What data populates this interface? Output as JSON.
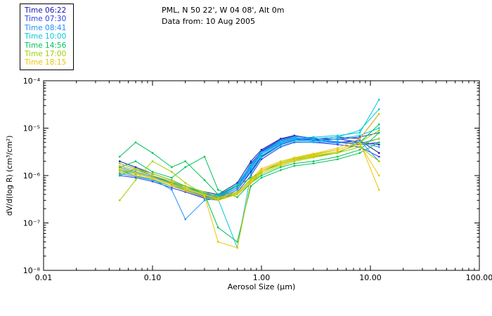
{
  "titles": {
    "line1": "PML, N 50 22', W 04 08', Alt 0m",
    "line2": "Data from: 10 Aug 2005"
  },
  "legend": {
    "position": "top-left",
    "entries": [
      {
        "label": "Time 06:22",
        "color": "#1515b0"
      },
      {
        "label": "Time 07:30",
        "color": "#2a3fe8"
      },
      {
        "label": "Time 08:41",
        "color": "#1e8fff"
      },
      {
        "label": "Time 10:00",
        "color": "#00c8dc"
      },
      {
        "label": "Time 14:56",
        "color": "#00c05a"
      },
      {
        "label": "Time 17:00",
        "color": "#9ed000"
      },
      {
        "label": "Time 18:15",
        "color": "#eec400"
      }
    ]
  },
  "chart_data": {
    "type": "line",
    "title": "PML, N 50 22', W 04 08', Alt 0m",
    "subtitle": "Data from: 10 Aug 2005",
    "xlabel": "Aerosol Size (μm)",
    "ylabel": "dV/d(log R) (cm³/cm²)",
    "xscale": "log",
    "yscale": "log",
    "xlim": [
      0.01,
      100
    ],
    "ylim": [
      1e-08,
      0.0001
    ],
    "grid": false,
    "legend_position": "top-left-outside",
    "x_ticks": [
      {
        "value": 0.01,
        "label": "0.01"
      },
      {
        "value": 0.1,
        "label": "0.10"
      },
      {
        "value": 1,
        "label": "1.00"
      },
      {
        "value": 10,
        "label": "10.00"
      },
      {
        "value": 100,
        "label": "100.00"
      }
    ],
    "y_ticks": [
      {
        "value": 1e-08,
        "label": "10⁻⁸"
      },
      {
        "value": 1e-07,
        "label": "10⁻⁷"
      },
      {
        "value": 1e-06,
        "label": "10⁻⁶"
      },
      {
        "value": 1e-05,
        "label": "10⁻⁵"
      },
      {
        "value": 0.0001,
        "label": "10⁻⁴"
      }
    ],
    "x": [
      0.05,
      0.07,
      0.1,
      0.15,
      0.2,
      0.3,
      0.4,
      0.6,
      0.8,
      1.0,
      1.5,
      2.0,
      3.0,
      5.0,
      8.0,
      12.0
    ],
    "series": [
      {
        "name": "Time 06:22 a",
        "color": "#1515b0",
        "values": [
          1.6e-06,
          1.3e-06,
          1e-06,
          7e-07,
          5.5e-07,
          4e-07,
          3.8e-07,
          6e-07,
          1.8e-06,
          3.2e-06,
          5.5e-06,
          6.5e-06,
          5.5e-06,
          6e-06,
          5e-06,
          4.5e-06
        ]
      },
      {
        "name": "Time 06:22 b",
        "color": "#1515b0",
        "values": [
          1.2e-06,
          1e-06,
          8e-07,
          6e-07,
          5e-07,
          3.5e-07,
          3.2e-07,
          5e-07,
          1.2e-06,
          2.5e-06,
          4.5e-06,
          5.5e-06,
          6e-06,
          5e-06,
          5.5e-06,
          3e-06
        ]
      },
      {
        "name": "Time 06:22 c",
        "color": "#1515b0",
        "values": [
          2e-06,
          1.5e-06,
          1.1e-06,
          8e-07,
          6e-07,
          4.5e-07,
          4e-07,
          7e-07,
          2e-06,
          3.5e-06,
          6e-06,
          7e-06,
          6e-06,
          6.5e-06,
          6e-06,
          2e-05
        ]
      },
      {
        "name": "Time 07:30 a",
        "color": "#2a3fe8",
        "values": [
          1.4e-06,
          1.1e-06,
          9e-07,
          6.5e-07,
          5e-07,
          3.6e-07,
          3.4e-07,
          5.5e-07,
          1.5e-06,
          3e-06,
          5e-06,
          6e-06,
          5.5e-06,
          5e-06,
          4.5e-06,
          5e-06
        ]
      },
      {
        "name": "Time 07:30 b",
        "color": "#2a3fe8",
        "values": [
          1e-06,
          9e-07,
          7.5e-07,
          5.5e-07,
          4.5e-07,
          3.3e-07,
          3e-07,
          4.5e-07,
          1e-06,
          2.2e-06,
          4e-06,
          5e-06,
          5e-06,
          4.5e-06,
          4e-06,
          2.5e-06
        ]
      },
      {
        "name": "Time 07:30 c",
        "color": "#2a3fe8",
        "values": [
          1.8e-06,
          1.4e-06,
          1e-06,
          7.5e-07,
          5.5e-07,
          4.2e-07,
          3.6e-07,
          6.5e-07,
          1.7e-06,
          3.3e-06,
          5.8e-06,
          6.8e-06,
          6.2e-06,
          5.8e-06,
          6.5e-06,
          8e-06
        ]
      },
      {
        "name": "Time 08:41 a",
        "color": "#1e8fff",
        "values": [
          1.5e-06,
          1.2e-06,
          9.5e-07,
          7e-07,
          5.2e-07,
          3.8e-07,
          3.5e-07,
          6e-07,
          1.6e-06,
          3e-06,
          5.2e-06,
          6.2e-06,
          5.8e-06,
          5.2e-06,
          4.8e-06,
          6e-06
        ]
      },
      {
        "name": "Time 08:41 b",
        "color": "#1e8fff",
        "values": [
          1.1e-06,
          9.5e-07,
          8e-07,
          6e-07,
          4.8e-07,
          3.4e-07,
          3.1e-07,
          5e-07,
          1.3e-06,
          2.6e-06,
          4.6e-06,
          5.6e-06,
          5.2e-06,
          4.8e-06,
          5.5e-06,
          2e-06
        ]
      },
      {
        "name": "Time 08:41 c",
        "color": "#1e8fff",
        "values": [
          1.3e-06,
          1e-06,
          8.5e-07,
          5e-07,
          1.2e-07,
          3e-07,
          3.3e-07,
          5.5e-07,
          1.4e-06,
          2.8e-06,
          4.8e-06,
          5.8e-06,
          5.5e-06,
          5e-06,
          5e-06,
          4e-06
        ]
      },
      {
        "name": "Time 10:00 a",
        "color": "#00c8dc",
        "values": [
          1.4e-06,
          1.1e-06,
          9e-07,
          7e-07,
          5.5e-07,
          4e-07,
          3.6e-07,
          6e-07,
          1.5e-06,
          2.8e-06,
          5e-06,
          6e-06,
          6.5e-06,
          7e-06,
          8e-06,
          4e-05
        ]
      },
      {
        "name": "Time 10:00 b",
        "color": "#00c8dc",
        "values": [
          1.2e-06,
          1e-06,
          8e-07,
          6e-07,
          5e-07,
          3.5e-07,
          3.2e-07,
          3e-08,
          1.1e-06,
          2.4e-06,
          4.2e-06,
          5.2e-06,
          5e-06,
          6e-06,
          7e-06,
          1e-05
        ]
      },
      {
        "name": "Time 10:00 c",
        "color": "#00c8dc",
        "values": [
          1.6e-06,
          1.3e-06,
          1e-06,
          7.5e-07,
          6e-07,
          4.2e-07,
          3.8e-07,
          6.5e-07,
          1.7e-06,
          3.1e-06,
          5.4e-06,
          6.4e-06,
          6e-06,
          6.5e-06,
          9e-06,
          2.5e-05
        ]
      },
      {
        "name": "Time 14:56 a",
        "color": "#00c05a",
        "values": [
          2.5e-06,
          5e-06,
          3e-06,
          1.5e-06,
          2e-06,
          8e-07,
          4e-07,
          6e-07,
          9e-07,
          1.2e-06,
          1.8e-06,
          2.2e-06,
          2.5e-06,
          3e-06,
          5e-06,
          1.2e-05
        ]
      },
      {
        "name": "Time 14:56 b",
        "color": "#00c05a",
        "values": [
          1.5e-06,
          2e-06,
          1.2e-06,
          9e-07,
          1.5e-06,
          2.5e-06,
          5e-07,
          3.5e-07,
          7e-07,
          1e-06,
          1.5e-06,
          1.8e-06,
          2e-06,
          2.5e-06,
          3.5e-06,
          8e-06
        ]
      },
      {
        "name": "Time 14:56 c",
        "color": "#00c05a",
        "values": [
          1e-06,
          1.4e-06,
          1e-06,
          7e-07,
          6e-07,
          4e-07,
          8e-08,
          4e-08,
          6e-07,
          9e-07,
          1.3e-06,
          1.6e-06,
          1.8e-06,
          2.2e-06,
          3e-06,
          5e-06
        ]
      },
      {
        "name": "Time 17:00 a",
        "color": "#9ed000",
        "values": [
          1.8e-06,
          1.4e-06,
          1.1e-06,
          8e-07,
          6e-07,
          4.5e-07,
          3.5e-07,
          4.5e-07,
          8e-07,
          1.3e-06,
          1.9e-06,
          2.3e-06,
          2.8e-06,
          3.5e-06,
          5e-06,
          9e-06
        ]
      },
      {
        "name": "Time 17:00 b",
        "color": "#9ed000",
        "values": [
          1.3e-06,
          1.1e-06,
          9e-07,
          6.5e-07,
          5e-07,
          3.8e-07,
          3.2e-07,
          4e-07,
          7e-07,
          1.1e-06,
          1.6e-06,
          2e-06,
          2.4e-06,
          3e-06,
          4e-06,
          2e-06
        ]
      },
      {
        "name": "Time 17:00 c",
        "color": "#9ed000",
        "values": [
          3e-07,
          8e-07,
          2e-06,
          1.2e-06,
          7e-07,
          4e-07,
          3e-07,
          4.2e-07,
          7.5e-07,
          1.2e-06,
          1.7e-06,
          2.1e-06,
          2.6e-06,
          3.2e-06,
          4.5e-06,
          6e-06
        ]
      },
      {
        "name": "Time 18:15 a",
        "color": "#eec400",
        "values": [
          1.6e-06,
          1.3e-06,
          1e-06,
          7.5e-07,
          5.5e-07,
          4e-07,
          3.3e-07,
          4.4e-07,
          8.5e-07,
          1.4e-06,
          2e-06,
          2.4e-06,
          2.9e-06,
          3.8e-06,
          6e-06,
          2e-05
        ]
      },
      {
        "name": "Time 18:15 b",
        "color": "#eec400",
        "values": [
          1.2e-06,
          1e-06,
          8.5e-07,
          6e-07,
          4.8e-07,
          3.5e-07,
          3e-07,
          4e-07,
          7e-07,
          1.2e-06,
          1.7e-06,
          2.1e-06,
          2.5e-06,
          3.2e-06,
          4.5e-06,
          1e-06
        ]
      },
      {
        "name": "Time 18:15 c",
        "color": "#eec400",
        "values": [
          1.4e-06,
          1.15e-06,
          9e-07,
          6.8e-07,
          5.2e-07,
          3.7e-07,
          4e-08,
          3e-08,
          7.5e-07,
          1.3e-06,
          1.8e-06,
          2.2e-06,
          2.7e-06,
          3.5e-06,
          5e-06,
          5e-07
        ]
      }
    ]
  }
}
